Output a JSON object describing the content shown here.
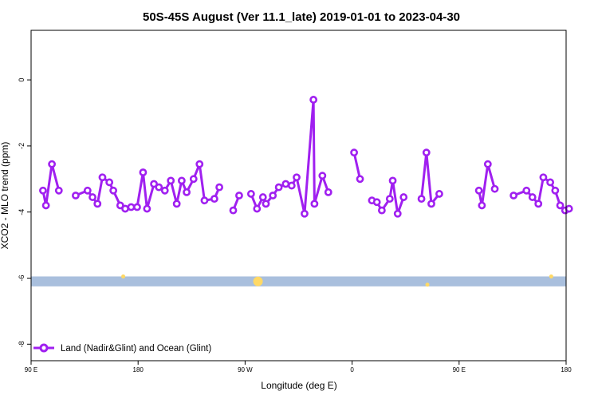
{
  "chart_data": {
    "type": "line",
    "title": "50S-45S August (Ver 11.1_late)   2019-01-01 to 2023-04-30",
    "xlabel": "Longitude (deg E)",
    "ylabel": "XCO2 - MLO trend (ppm)",
    "xlim": [
      -90,
      180
    ],
    "ylim": [
      -8.5,
      1.5
    ],
    "x_ticks": [
      {
        "value": -90,
        "label": "90 E"
      },
      {
        "value": -36,
        "label": "180"
      },
      {
        "value": 18,
        "label": "90 W"
      },
      {
        "value": 72,
        "label": "0"
      },
      {
        "value": 126,
        "label": "90 E"
      },
      {
        "value": 180,
        "label": "180"
      }
    ],
    "y_ticks": [
      0,
      -2,
      -4,
      -6,
      -8
    ],
    "grid": false,
    "legend_position": "bottom-left",
    "series": [
      {
        "name": "Land (Nadir&Glint) and Ocean (Glint)",
        "color": "#A020F0",
        "points": [
          [
            -84,
            -3.35
          ],
          [
            -82.5,
            -3.8
          ],
          [
            -79.5,
            -2.55
          ],
          [
            -76,
            -3.35
          ],
          null,
          [
            -67.5,
            -3.5
          ],
          [
            -61.5,
            -3.35
          ],
          [
            -59,
            -3.55
          ],
          [
            -56.5,
            -3.75
          ],
          [
            -54,
            -2.95
          ],
          [
            -50.5,
            -3.1
          ],
          [
            -48.5,
            -3.35
          ],
          [
            -45,
            -3.8
          ],
          [
            -42.5,
            -3.9
          ],
          [
            -39.5,
            -3.85
          ],
          [
            -36.5,
            -3.85
          ],
          [
            -33.5,
            -2.8
          ],
          [
            -31.5,
            -3.9
          ],
          [
            -28,
            -3.15
          ],
          [
            -25.5,
            -3.25
          ],
          [
            -22.5,
            -3.35
          ],
          [
            -19.5,
            -3.05
          ],
          [
            -16.5,
            -3.75
          ],
          [
            -14,
            -3.05
          ],
          [
            -11.5,
            -3.4
          ],
          [
            -8,
            -3.0
          ],
          [
            -5,
            -2.55
          ],
          [
            -2.5,
            -3.65
          ],
          [
            2.5,
            -3.6
          ],
          [
            5,
            -3.25
          ],
          null,
          [
            12,
            -3.95
          ],
          [
            15,
            -3.5
          ],
          null,
          [
            21,
            -3.45
          ],
          [
            24,
            -3.9
          ],
          [
            27,
            -3.55
          ],
          [
            28.5,
            -3.75
          ],
          [
            32,
            -3.5
          ],
          [
            35,
            -3.25
          ],
          [
            38.5,
            -3.15
          ],
          [
            41.5,
            -3.2
          ],
          [
            44,
            -2.95
          ],
          [
            48,
            -4.05
          ],
          [
            52.5,
            -0.6
          ],
          [
            53,
            -3.75
          ],
          [
            57,
            -2.9
          ],
          [
            60,
            -3.4
          ],
          null,
          [
            73,
            -2.2
          ],
          [
            76,
            -3.0
          ],
          null,
          [
            82,
            -3.65
          ],
          [
            84.5,
            -3.7
          ],
          [
            87,
            -3.95
          ],
          [
            91,
            -3.6
          ],
          [
            92.5,
            -3.05
          ],
          [
            95,
            -4.05
          ],
          [
            98,
            -3.55
          ],
          null,
          [
            107,
            -3.6
          ],
          [
            109.5,
            -2.2
          ],
          [
            112,
            -3.75
          ],
          [
            116,
            -3.45
          ],
          null,
          [
            136,
            -3.35
          ],
          [
            137.5,
            -3.8
          ],
          [
            140.5,
            -2.55
          ],
          [
            144,
            -3.3
          ],
          null,
          [
            153.5,
            -3.5
          ],
          [
            160,
            -3.35
          ],
          [
            163,
            -3.55
          ],
          [
            166,
            -3.75
          ],
          [
            168.5,
            -2.95
          ],
          [
            172,
            -3.1
          ],
          [
            174.5,
            -3.35
          ],
          [
            177,
            -3.8
          ],
          [
            179.5,
            -3.95
          ],
          [
            181.5,
            -3.9
          ]
        ]
      }
    ],
    "ocean_band": {
      "y_from": -6.25,
      "y_to": -5.95,
      "color": "#A9BFDD"
    },
    "highlights_color": "#FFD966",
    "highlights": [
      [
        -43.5,
        -5.95
      ],
      [
        24.5,
        -6.1
      ],
      [
        110,
        -6.2
      ],
      [
        172.5,
        -5.95
      ]
    ]
  }
}
